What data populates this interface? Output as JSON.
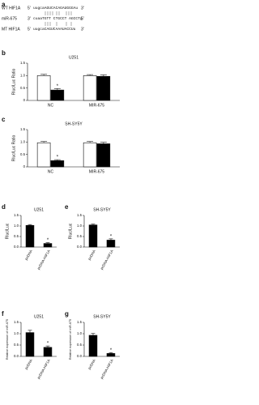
{
  "alignment": {
    "panel": "a",
    "rows": [
      {
        "label": "WT HIF1A",
        "left": "5'",
        "sequence": "uugcaAGUCACAGAUGGGAu",
        "right": "3'"
      },
      {
        "label": "miR-675",
        "left": "3'",
        "sequence": "cuaaTGTT CTGCCT AGCCTg",
        "right": "5'"
      },
      {
        "label": "MT HIF1A",
        "left": "5'",
        "sequence": "uugcaCAGUCAAAUACCUu",
        "right": "3'"
      }
    ]
  },
  "chart_data": [
    {
      "panel": "b",
      "type": "bar",
      "title": "U251",
      "y_label": "Rluc/Luc Ratio",
      "categories": [
        "NC",
        "MIR-675"
      ],
      "series": [
        {
          "color": "#ffffff",
          "values": [
            1.0,
            1.0
          ],
          "errors": [
            0.05,
            0.04
          ]
        },
        {
          "color": "#000000",
          "values": [
            0.42,
            0.97
          ],
          "errors": [
            0.06,
            0.06
          ]
        }
      ],
      "annotations": [
        {
          "text": "*",
          "series": 1,
          "category": 0
        }
      ],
      "ylim": [
        0,
        1.5
      ],
      "yticks": [
        0,
        0.5,
        {
          "value": 1,
          "label": "1.0"
        },
        1.5
      ]
    },
    {
      "panel": "c",
      "type": "bar",
      "title": "SH-SY5Y",
      "y_label": "Rluc/Luc Ratio",
      "categories": [
        "NC",
        "MIR-675"
      ],
      "series": [
        {
          "color": "#ffffff",
          "values": [
            0.97,
            0.97
          ],
          "errors": [
            0.05,
            0.05
          ]
        },
        {
          "color": "#000000",
          "values": [
            0.25,
            0.93
          ],
          "errors": [
            0.04,
            0.06
          ]
        }
      ],
      "annotations": [
        {
          "text": "*",
          "series": 1,
          "category": 0
        }
      ],
      "ylim": [
        0,
        1.5
      ],
      "yticks": [
        0,
        0.5,
        {
          "value": 1,
          "label": "1.0"
        },
        1.5
      ]
    },
    {
      "panel": "d",
      "type": "bar",
      "title": "U251",
      "y_label": "Rluc/Luc",
      "categories": [
        "pcDNA",
        "pcDNA-HIF1A"
      ],
      "series": [
        {
          "color": "#000000",
          "values": [
            1.03,
            0.17
          ],
          "errors": [
            0.04,
            0.04
          ]
        }
      ],
      "annotations": [
        {
          "text": "*",
          "series": 0,
          "category": 1
        }
      ],
      "ylim": [
        0,
        1.5
      ],
      "yticks": [
        {
          "value": 0,
          "label": "0.0"
        },
        0.5,
        {
          "value": 1,
          "label": "1.0"
        },
        1.5
      ]
    },
    {
      "panel": "e",
      "type": "bar",
      "title": "SH-SY5Y",
      "y_label": "Rluc/Luc",
      "categories": [
        "pcDNA",
        "pcDNA-HIF1A"
      ],
      "series": [
        {
          "color": "#000000",
          "values": [
            1.05,
            0.33
          ],
          "errors": [
            0.04,
            0.06
          ]
        }
      ],
      "annotations": [
        {
          "text": "*",
          "series": 0,
          "category": 1
        }
      ],
      "ylim": [
        0,
        1.5
      ],
      "yticks": [
        {
          "value": 0,
          "label": "0.0"
        },
        0.5,
        {
          "value": 1,
          "label": "1.0"
        },
        1.5
      ]
    },
    {
      "panel": "f",
      "type": "bar",
      "title": "U251",
      "y_label": "Relative expression of miR-675",
      "categories": [
        "pcDNA",
        "pcDNA-HIF1A"
      ],
      "series": [
        {
          "color": "#000000",
          "values": [
            1.05,
            0.4
          ],
          "errors": [
            0.1,
            0.06
          ]
        }
      ],
      "annotations": [
        {
          "text": "*",
          "series": 0,
          "category": 1
        }
      ],
      "ylim": [
        0,
        1.5
      ],
      "yticks": [
        {
          "value": 0,
          "label": "0.0"
        },
        0.5,
        {
          "value": 1,
          "label": "1.0"
        },
        1.5
      ]
    },
    {
      "panel": "g",
      "type": "bar",
      "title": "SH-SY5Y",
      "y_label": "Relative expression of miR-675",
      "categories": [
        "pcDNA",
        "pcDNA-HIF1A"
      ],
      "series": [
        {
          "color": "#000000",
          "values": [
            0.93,
            0.13
          ],
          "errors": [
            0.08,
            0.04
          ]
        }
      ],
      "annotations": [
        {
          "text": "*",
          "series": 0,
          "category": 1
        }
      ],
      "ylim": [
        0,
        1.5
      ],
      "yticks": [
        {
          "value": 0,
          "label": "0.0"
        },
        0.5,
        {
          "value": 1,
          "label": "1.0"
        },
        1.5
      ]
    }
  ]
}
